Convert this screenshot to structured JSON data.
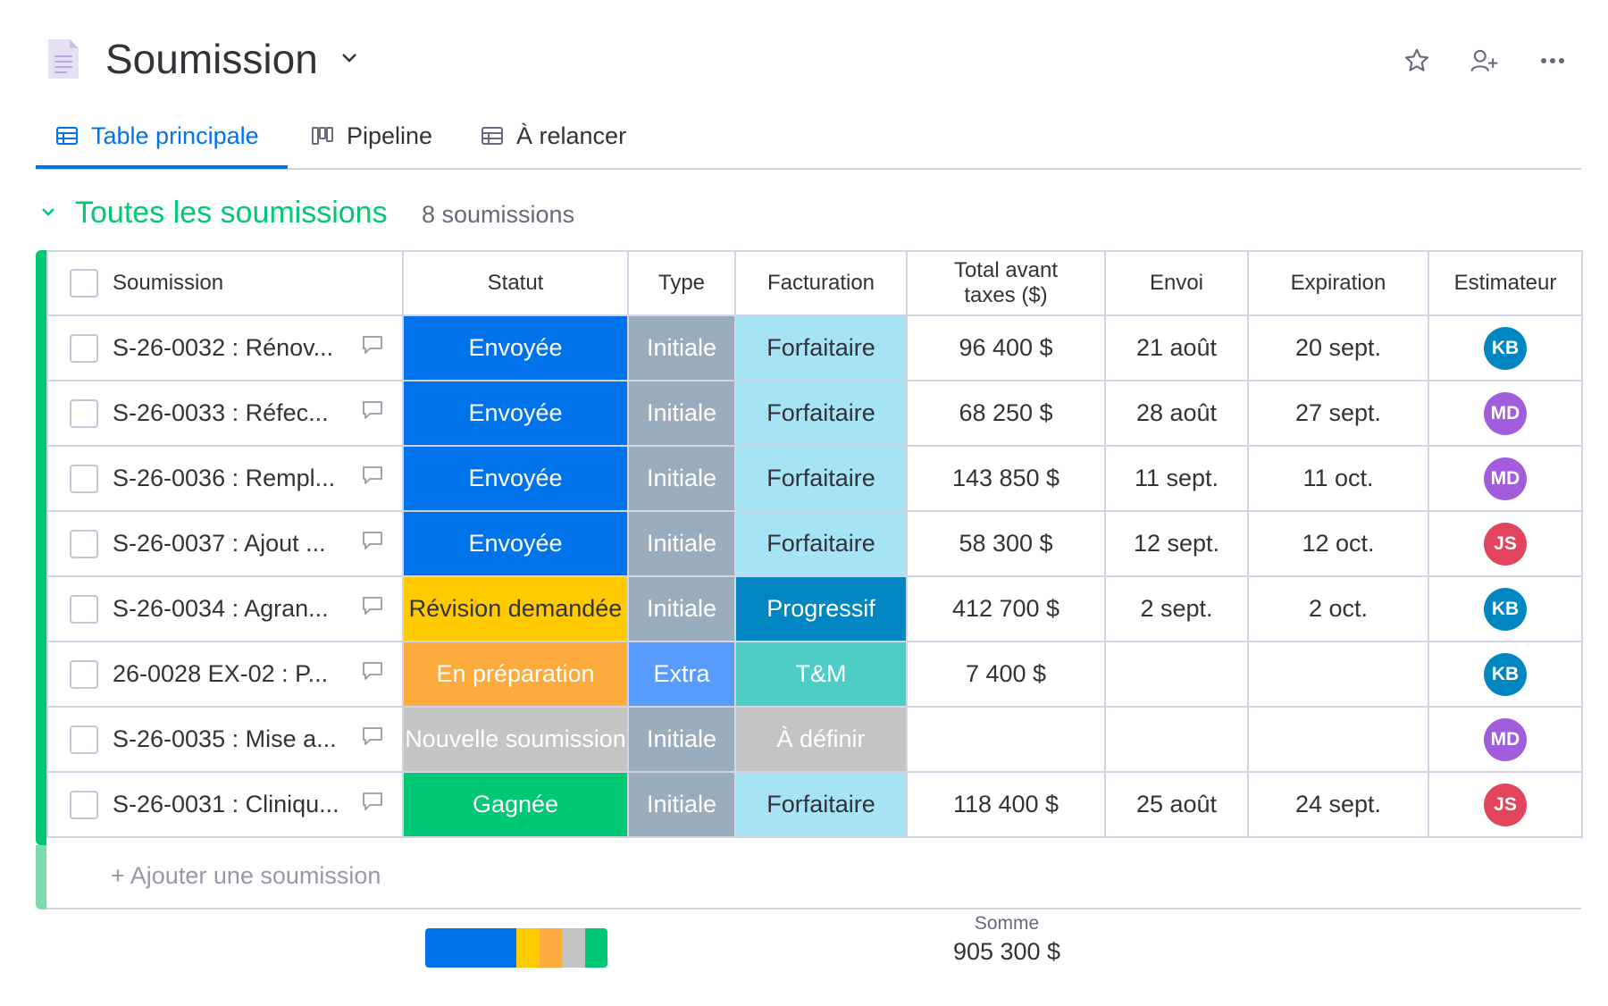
{
  "header": {
    "title": "Soumission"
  },
  "tabs": [
    {
      "label": "Table principale",
      "active": true
    },
    {
      "label": "Pipeline",
      "active": false
    },
    {
      "label": "À relancer",
      "active": false
    }
  ],
  "group": {
    "title": "Toutes les soumissions",
    "count": "8 soumissions",
    "color": "#00c875"
  },
  "columns": [
    "Soumission",
    "Statut",
    "Type",
    "Facturation",
    "Total avant taxes ($)",
    "Envoi",
    "Expiration",
    "Estimateur"
  ],
  "rows": [
    {
      "name": "S-26-0032 : Rénov...",
      "statut": "Envoyée",
      "statut_color": "#0073ea",
      "type": "Initiale",
      "type_color": "#9aadbd",
      "facturation": "Forfaitaire",
      "fact_color": "#a6e3f5",
      "fact_text_color": "#323338",
      "total": "96 400 $",
      "envoi": "21 août",
      "expiration": "20 sept.",
      "estimateur": "KB",
      "est_color": "#0086c0"
    },
    {
      "name": "S-26-0033 : Réfec...",
      "statut": "Envoyée",
      "statut_color": "#0073ea",
      "type": "Initiale",
      "type_color": "#9aadbd",
      "facturation": "Forfaitaire",
      "fact_color": "#a6e3f5",
      "fact_text_color": "#323338",
      "total": "68 250 $",
      "envoi": "28 août",
      "expiration": "27 sept.",
      "estimateur": "MD",
      "est_color": "#a25ddc"
    },
    {
      "name": "S-26-0036 : Rempl...",
      "statut": "Envoyée",
      "statut_color": "#0073ea",
      "type": "Initiale",
      "type_color": "#9aadbd",
      "facturation": "Forfaitaire",
      "fact_color": "#a6e3f5",
      "fact_text_color": "#323338",
      "total": "143 850 $",
      "envoi": "11 sept.",
      "expiration": "11 oct.",
      "estimateur": "MD",
      "est_color": "#a25ddc"
    },
    {
      "name": "S-26-0037 : Ajout ...",
      "statut": "Envoyée",
      "statut_color": "#0073ea",
      "type": "Initiale",
      "type_color": "#9aadbd",
      "facturation": "Forfaitaire",
      "fact_color": "#a6e3f5",
      "fact_text_color": "#323338",
      "total": "58 300 $",
      "envoi": "12 sept.",
      "expiration": "12 oct.",
      "estimateur": "JS",
      "est_color": "#e2445c"
    },
    {
      "name": "S-26-0034 : Agran...",
      "statut": "Révision demandée",
      "statut_color": "#ffcb00",
      "statut_text_color": "#323338",
      "type": "Initiale",
      "type_color": "#9aadbd",
      "facturation": "Progressif",
      "fact_color": "#0086c0",
      "fact_text_color": "#ffffff",
      "total": "412 700 $",
      "envoi": "2 sept.",
      "expiration": "2 oct.",
      "estimateur": "KB",
      "est_color": "#0086c0"
    },
    {
      "name": "26-0028 EX-02 : P...",
      "statut": "En préparation",
      "statut_color": "#fdab3d",
      "type": "Extra",
      "type_color": "#579bfc",
      "facturation": "T&M",
      "fact_color": "#4eccc6",
      "fact_text_color": "#ffffff",
      "total": "7 400 $",
      "envoi": "",
      "expiration": "",
      "estimateur": "KB",
      "est_color": "#0086c0"
    },
    {
      "name": "S-26-0035 : Mise a...",
      "statut": "Nouvelle soumission",
      "statut_color": "#c4c4c4",
      "type": "Initiale",
      "type_color": "#9aadbd",
      "facturation": "À définir",
      "fact_color": "#c4c4c4",
      "fact_text_color": "#ffffff",
      "total": "",
      "envoi": "",
      "expiration": "",
      "estimateur": "MD",
      "est_color": "#a25ddc"
    },
    {
      "name": "S-26-0031 : Cliniqu...",
      "statut": "Gagnée",
      "statut_color": "#00c875",
      "type": "Initiale",
      "type_color": "#9aadbd",
      "facturation": "Forfaitaire",
      "fact_color": "#a6e3f5",
      "fact_text_color": "#323338",
      "total": "118 400 $",
      "envoi": "25 août",
      "expiration": "24 sept.",
      "estimateur": "JS",
      "est_color": "#e2445c"
    }
  ],
  "add_item": "+ Ajouter une soumission",
  "summary": {
    "status_distribution": [
      {
        "label": "Envoyée",
        "count": 4,
        "color": "#0073ea"
      },
      {
        "label": "Révision demandée",
        "count": 1,
        "color": "#ffcb00"
      },
      {
        "label": "En préparation",
        "count": 1,
        "color": "#fdab3d"
      },
      {
        "label": "Nouvelle soumission",
        "count": 1,
        "color": "#c4c4c4"
      },
      {
        "label": "Gagnée",
        "count": 1,
        "color": "#00c875"
      }
    ],
    "sum_label": "Somme",
    "sum_value": "905 300 $"
  }
}
